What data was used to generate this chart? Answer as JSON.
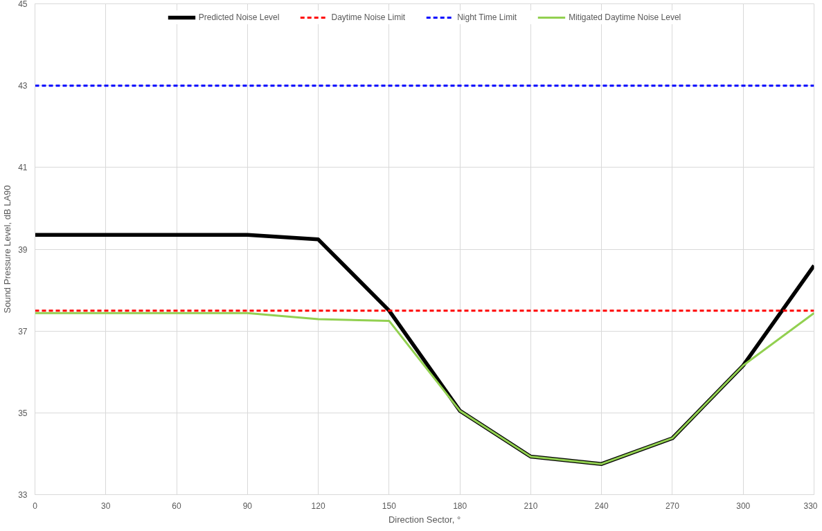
{
  "chart_data": {
    "type": "line",
    "xlabel": "Direction Sector, °",
    "ylabel": "Sound Pressure Level, dB LA90",
    "x": [
      0,
      30,
      60,
      90,
      120,
      150,
      180,
      210,
      240,
      270,
      300,
      330
    ],
    "series": [
      {
        "name": "Predicted Noise Level",
        "color": "#000000",
        "line_style": "solid",
        "values": [
          39.35,
          39.35,
          39.35,
          39.35,
          39.24,
          37.5,
          35.05,
          33.93,
          33.75,
          34.38,
          36.16,
          38.6
        ]
      },
      {
        "name": "Daytime Noise Limit",
        "color": "#ff0000",
        "line_style": "dashed",
        "values": [
          37.5,
          37.5,
          37.5,
          37.5,
          37.5,
          37.5,
          37.5,
          37.5,
          37.5,
          37.5,
          37.5,
          37.5
        ]
      },
      {
        "name": "Night Time Limit",
        "color": "#0000ff",
        "line_style": "dashed",
        "values": [
          43,
          43,
          43,
          43,
          43,
          43,
          43,
          43,
          43,
          43,
          43,
          43
        ]
      },
      {
        "name": "Mitigated Daytime Noise Level",
        "color": "#92d050",
        "line_style": "solid",
        "values": [
          37.44,
          37.44,
          37.44,
          37.44,
          37.29,
          37.25,
          35.05,
          33.93,
          33.75,
          34.38,
          36.16,
          37.44
        ]
      }
    ],
    "xlim": [
      0,
      330
    ],
    "xticks": [
      0,
      30,
      60,
      90,
      120,
      150,
      180,
      210,
      240,
      270,
      300,
      330
    ],
    "ylim": [
      33,
      45
    ],
    "yticks": [
      33,
      35,
      37,
      39,
      41,
      43,
      45
    ],
    "grid": true,
    "legend": "top",
    "marker": "none"
  }
}
